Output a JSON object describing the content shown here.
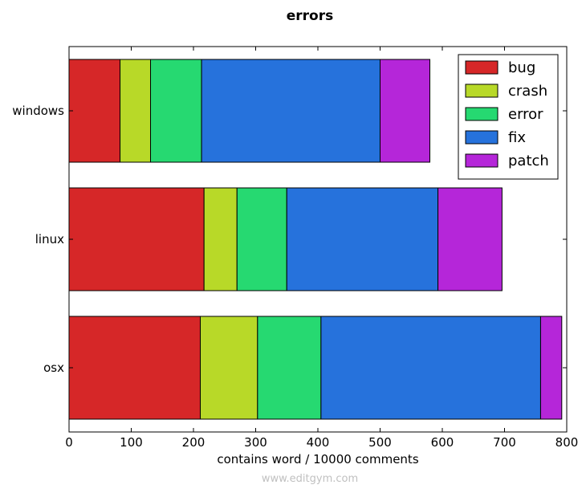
{
  "chart_data": {
    "type": "bar",
    "orientation": "horizontal",
    "stacked": true,
    "title": "errors",
    "xlabel": "contains word / 10000 comments",
    "ylabel": "",
    "xlim": [
      0,
      800
    ],
    "xticks": [
      0,
      100,
      200,
      300,
      400,
      500,
      600,
      700,
      800
    ],
    "categories": [
      "windows",
      "linux",
      "osx"
    ],
    "series": [
      {
        "name": "bug",
        "color": "#d62728",
        "values": [
          82,
          217,
          211
        ]
      },
      {
        "name": "crash",
        "color": "#b8d928",
        "values": [
          49,
          53,
          92
        ]
      },
      {
        "name": "error",
        "color": "#26d971",
        "values": [
          82,
          80,
          102
        ]
      },
      {
        "name": "fix",
        "color": "#2672dc",
        "values": [
          287,
          243,
          353
        ]
      },
      {
        "name": "patch",
        "color": "#b526d9",
        "values": [
          80,
          103,
          34
        ]
      }
    ],
    "legend_position": "top-right",
    "grid": false
  },
  "watermark": "www.editgym.com"
}
